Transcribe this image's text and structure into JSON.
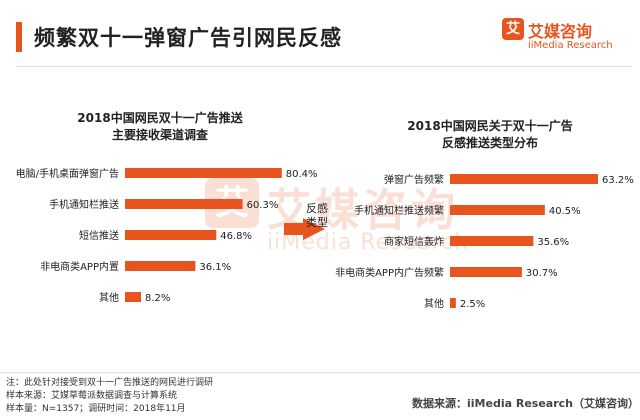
{
  "page": {
    "title": "频繁双十一弹窗广告引网民反感"
  },
  "logo": {
    "mark": "艾",
    "name_cn": "艾媒咨询",
    "name_en": "iiMedia Research"
  },
  "watermark": {
    "mark": "艾",
    "name_cn": "艾媒咨询",
    "name_en": "iiMedia Research"
  },
  "arrow": {
    "label_line1": "反感",
    "label_line2": "类型"
  },
  "colors": {
    "accent": "#e8541e",
    "bar": "#e8541e",
    "text": "#222222"
  },
  "chart_data": [
    {
      "type": "bar",
      "orientation": "horizontal",
      "title": "2018中国网民双十一广告推送",
      "subtitle": "主要接收渠道调查",
      "categories": [
        "电脑/手机桌面弹窗广告",
        "手机通知栏推送",
        "短信推送",
        "非电商类APP内置",
        "其他"
      ],
      "values": [
        80.4,
        60.3,
        46.8,
        36.1,
        8.2
      ],
      "value_labels": [
        "80.4%",
        "60.3%",
        "46.8%",
        "36.1%",
        "8.2%"
      ],
      "xlim": [
        0,
        100
      ],
      "grid": false
    },
    {
      "type": "bar",
      "orientation": "horizontal",
      "title": "2018中国网民关于双十一广告",
      "subtitle": "反感推送类型分布",
      "categories": [
        "弹窗广告频繁",
        "手机通知栏推送频繁",
        "商家短信轰炸",
        "非电商类APP内广告频繁",
        "其他"
      ],
      "values": [
        63.2,
        40.5,
        35.6,
        30.7,
        2.5
      ],
      "value_labels": [
        "63.2%",
        "40.5%",
        "35.6%",
        "30.7%",
        "2.5%"
      ],
      "xlim": [
        0,
        63.2
      ],
      "grid": false
    }
  ],
  "footer": {
    "note1": "注：此处针对接受到双十一广告推送的网民进行调研",
    "note2": "样本来源：艾媒草莓派数据调查与计算系统",
    "note3": "样本量：N=1357；调研时间：2018年11月",
    "source": "数据来源：iiMedia Research（艾媒咨询）"
  }
}
